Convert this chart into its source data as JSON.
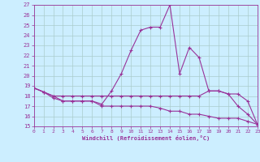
{
  "xlabel": "Windchill (Refroidissement éolien,°C)",
  "xlim": [
    0,
    23
  ],
  "ylim": [
    15,
    27
  ],
  "xticks": [
    0,
    1,
    2,
    3,
    4,
    5,
    6,
    7,
    8,
    9,
    10,
    11,
    12,
    13,
    14,
    15,
    16,
    17,
    18,
    19,
    20,
    21,
    22,
    23
  ],
  "yticks": [
    15,
    16,
    17,
    18,
    19,
    20,
    21,
    22,
    23,
    24,
    25,
    26,
    27
  ],
  "line_color": "#993399",
  "bg_color": "#cceeff",
  "grid_color": "#aacccc",
  "line1_x": [
    0,
    1,
    2,
    3,
    4,
    5,
    6,
    7,
    8,
    9,
    10,
    11,
    12,
    13,
    14,
    15,
    16,
    17,
    18,
    19,
    20,
    21,
    22,
    23
  ],
  "line1_y": [
    18.8,
    18.4,
    17.8,
    17.5,
    17.5,
    17.5,
    17.5,
    17.2,
    18.5,
    20.2,
    22.5,
    24.5,
    24.8,
    24.8,
    27.0,
    20.2,
    22.8,
    21.8,
    18.5,
    18.5,
    18.2,
    17.0,
    16.2,
    15.2
  ],
  "line2_x": [
    0,
    1,
    2,
    3,
    4,
    5,
    6,
    7,
    8,
    9,
    10,
    11,
    12,
    13,
    14,
    15,
    16,
    17,
    18,
    19,
    20,
    21,
    22,
    23
  ],
  "line2_y": [
    18.8,
    18.4,
    18.0,
    18.0,
    18.0,
    18.0,
    18.0,
    18.0,
    18.0,
    18.0,
    18.0,
    18.0,
    18.0,
    18.0,
    18.0,
    18.0,
    18.0,
    18.0,
    18.5,
    18.5,
    18.2,
    18.2,
    17.5,
    15.2
  ],
  "line3_x": [
    0,
    1,
    2,
    3,
    4,
    5,
    6,
    7,
    8,
    9,
    10,
    11,
    12,
    13,
    14,
    15,
    16,
    17,
    18,
    19,
    20,
    21,
    22,
    23
  ],
  "line3_y": [
    18.8,
    18.4,
    18.0,
    17.5,
    17.5,
    17.5,
    17.5,
    17.0,
    17.0,
    17.0,
    17.0,
    17.0,
    17.0,
    16.8,
    16.5,
    16.5,
    16.2,
    16.2,
    16.0,
    15.8,
    15.8,
    15.8,
    15.5,
    15.2
  ]
}
